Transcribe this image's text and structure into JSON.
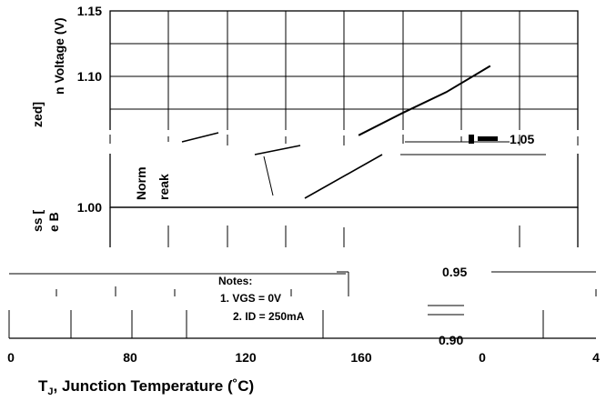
{
  "chart_data": {
    "type": "line",
    "title": "",
    "xlabel": "T",
    "xlabel_sub": "J",
    "xlabel_rest": ", Junction Temperature (˚C)",
    "ylabel_primary": "n Voltage (V)",
    "ylabel_secondary_1": "zed]",
    "ylabel_secondary_2": "ss [",
    "ylabel_secondary_3": "e B",
    "y_ticks": [
      "1.15",
      "1.10",
      "1.00"
    ],
    "y_ticks_lower": [
      "0.95",
      "0.90"
    ],
    "x_ticks": [
      "0",
      "80",
      "120",
      "160",
      "0",
      "4"
    ],
    "ylim": [
      1.0,
      1.15
    ],
    "series": [
      {
        "name": "",
        "x": [
          170,
          200,
          230,
          260
        ],
        "y": [
          1.055,
          1.072,
          1.088,
          1.108
        ]
      }
    ],
    "annotations": {
      "notes_title": "Notes:",
      "note_1": "1. VGS = 0V",
      "note_2": "2. ID = 250mA",
      "fragment_value": "1.05",
      "fragment_norm_1": "Norm",
      "fragment_norm_2": "reak",
      "fragment_lower_0": "0.95",
      "fragment_lower_1": "0.90"
    }
  }
}
